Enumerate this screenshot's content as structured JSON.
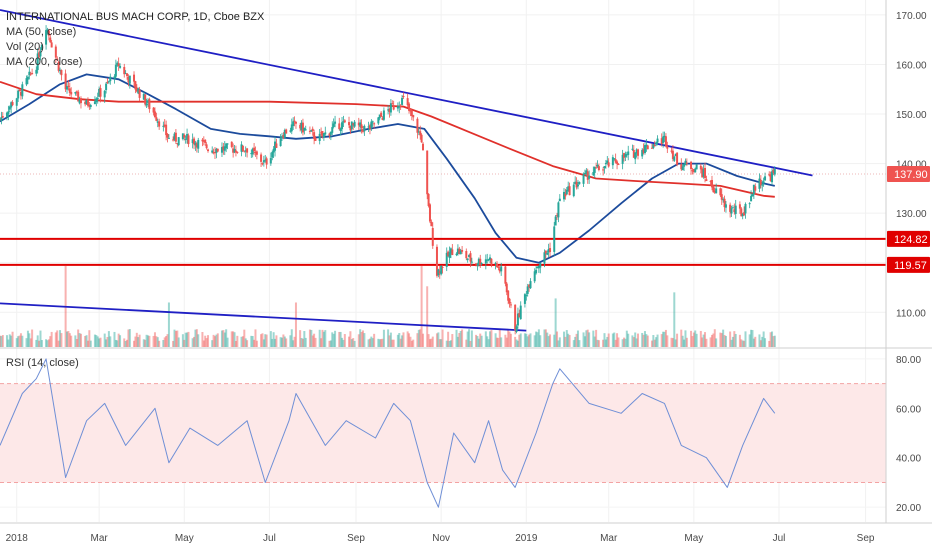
{
  "header": {
    "title": "INTERNATIONAL BUS MACH CORP, 1D, Cboe BZX",
    "indicators": [
      "MA (50, close)",
      "Vol (20)",
      "MA (200, close)"
    ],
    "rsi_label": "RSI (14, close)"
  },
  "colors": {
    "up": "#26a69a",
    "down": "#ef5350",
    "ma50": "#1c4b9c",
    "ma200": "#e0302b",
    "trendline": "#1f1fc4",
    "support": "#e00000",
    "rsi_line": "#6f8fd6",
    "rsi_band": "#fde8e8"
  },
  "chart_data": [
    {
      "type": "line",
      "title": "INTERNATIONAL BUS MACH CORP, 1D, Cboe BZX",
      "x_ticks": [
        "2018",
        "Mar",
        "May",
        "Jul",
        "Sep",
        "Nov",
        "2019",
        "Mar",
        "May",
        "Jul",
        "Sep"
      ],
      "y_ticks": [
        110,
        120,
        130,
        140,
        150,
        160,
        170
      ],
      "ylim": [
        103,
        172
      ],
      "last_price": 137.9,
      "price_labels": [
        "137.90",
        "124.82",
        "119.57"
      ],
      "horizontal_levels": [
        124.82,
        119.57
      ],
      "series": [
        {
          "name": "Price",
          "style": "candlestick",
          "x": [
            "2017-12-20",
            "2018-01-05",
            "2018-01-15",
            "2018-01-22",
            "2018-02-05",
            "2018-02-20",
            "2018-03-05",
            "2018-03-15",
            "2018-04-10",
            "2018-04-20",
            "2018-05-05",
            "2018-05-20",
            "2018-06-15",
            "2018-06-28",
            "2018-07-10",
            "2018-07-20",
            "2018-08-05",
            "2018-08-20",
            "2018-09-10",
            "2018-09-25",
            "2018-10-05",
            "2018-10-18",
            "2018-10-22",
            "2018-10-29",
            "2018-11-10",
            "2018-11-25",
            "2018-12-05",
            "2018-12-15",
            "2018-12-24",
            "2019-01-05",
            "2019-01-18",
            "2019-01-25",
            "2019-02-15",
            "2019-03-10",
            "2019-03-25",
            "2019-04-10",
            "2019-04-20",
            "2019-05-05",
            "2019-05-25",
            "2019-06-05",
            "2019-06-15",
            "2019-06-28"
          ],
          "values": [
            149,
            155,
            160,
            168,
            155,
            152,
            155,
            160,
            150,
            145,
            145,
            143,
            143,
            140,
            146,
            148,
            145,
            148,
            147,
            151,
            153,
            145,
            133,
            118,
            123,
            120,
            121,
            118,
            107,
            118,
            123,
            133,
            138,
            141,
            143,
            145,
            140,
            139,
            131,
            130,
            136,
            138
          ]
        },
        {
          "name": "MA (50, close)",
          "x": [
            "2017-12-20",
            "2018-01-10",
            "2018-02-01",
            "2018-02-20",
            "2018-03-15",
            "2018-04-05",
            "2018-04-25",
            "2018-05-20",
            "2018-06-10",
            "2018-07-01",
            "2018-07-20",
            "2018-08-15",
            "2018-09-10",
            "2018-10-01",
            "2018-10-20",
            "2018-11-05",
            "2018-11-25",
            "2018-12-10",
            "2018-12-25",
            "2019-01-10",
            "2019-01-25",
            "2019-02-15",
            "2019-03-10",
            "2019-04-01",
            "2019-04-20",
            "2019-05-10",
            "2019-06-01",
            "2019-06-20",
            "2019-06-28"
          ],
          "values": [
            148.5,
            152,
            156,
            158,
            157,
            154,
            151,
            147,
            146,
            145.5,
            145,
            145.5,
            147,
            148,
            147,
            141,
            133,
            126,
            121,
            120,
            122,
            126.5,
            132,
            137,
            140,
            140,
            137.5,
            136,
            135.5
          ]
        },
        {
          "name": "MA (200, close)",
          "x": [
            "2017-12-20",
            "2018-01-15",
            "2018-02-15",
            "2018-03-15",
            "2018-05-01",
            "2018-07-01",
            "2018-09-01",
            "2018-10-05",
            "2018-10-25",
            "2018-11-20",
            "2018-12-20",
            "2019-01-20",
            "2019-02-20",
            "2019-03-20",
            "2019-04-20",
            "2019-05-20",
            "2019-06-20",
            "2019-06-28"
          ],
          "values": [
            156.5,
            154,
            153,
            152.5,
            152.5,
            152.5,
            152,
            151.5,
            149.5,
            146.5,
            143,
            139.5,
            137,
            136.5,
            136,
            135.5,
            133.5,
            133.3
          ]
        },
        {
          "name": "Trendline (upper)",
          "x": [
            "2017-12-20",
            "2019-07-25"
          ],
          "values": [
            171,
            137.6
          ]
        },
        {
          "name": "Trendline (lower)",
          "x": [
            "2017-12-20",
            "2019-01-01"
          ],
          "values": [
            111.8,
            106.3
          ]
        }
      ]
    },
    {
      "type": "bar",
      "title": "Vol (20)",
      "x": [
        "2018-02-05",
        "2018-04-20",
        "2018-07-20",
        "2018-10-18",
        "2018-10-22",
        "2019-01-22",
        "2019-04-17"
      ],
      "values": [
        40,
        22,
        22,
        40,
        30,
        24,
        27
      ],
      "unit": "relative"
    },
    {
      "type": "line",
      "title": "RSI (14, close)",
      "y_ticks": [
        20,
        40,
        60,
        80
      ],
      "ylim": [
        14,
        84
      ],
      "band": [
        30,
        70
      ],
      "series": [
        {
          "name": "RSI (14, close)",
          "x": [
            "2017-12-20",
            "2018-01-05",
            "2018-01-15",
            "2018-01-22",
            "2018-02-05",
            "2018-02-20",
            "2018-03-05",
            "2018-03-20",
            "2018-04-10",
            "2018-04-20",
            "2018-05-05",
            "2018-05-25",
            "2018-06-15",
            "2018-06-28",
            "2018-07-15",
            "2018-07-20",
            "2018-08-10",
            "2018-08-25",
            "2018-09-15",
            "2018-09-28",
            "2018-10-10",
            "2018-10-22",
            "2018-10-30",
            "2018-11-10",
            "2018-11-25",
            "2018-12-05",
            "2018-12-15",
            "2018-12-24",
            "2019-01-08",
            "2019-01-20",
            "2019-01-25",
            "2019-02-15",
            "2019-03-10",
            "2019-03-25",
            "2019-04-10",
            "2019-04-22",
            "2019-05-10",
            "2019-05-25",
            "2019-06-05",
            "2019-06-20",
            "2019-06-28"
          ],
          "values": [
            45,
            66,
            72,
            80,
            32,
            55,
            62,
            45,
            60,
            38,
            52,
            45,
            55,
            30,
            55,
            66,
            45,
            55,
            48,
            62,
            55,
            30,
            20,
            50,
            38,
            55,
            35,
            28,
            50,
            70,
            76,
            62,
            58,
            66,
            62,
            45,
            40,
            28,
            45,
            64,
            58
          ]
        }
      ]
    }
  ]
}
